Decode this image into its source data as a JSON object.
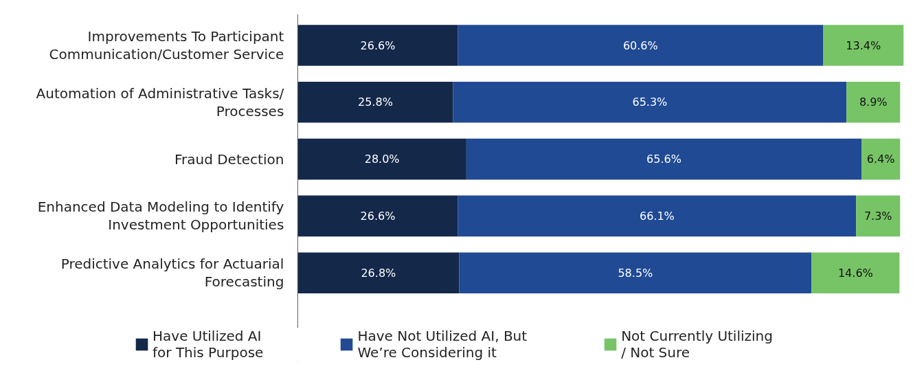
{
  "chart_data": {
    "type": "bar",
    "orientation": "horizontal",
    "stacked": true,
    "grid": false,
    "legend": "bottom",
    "categories": [
      "Improvements To Participant\nCommunication/Customer Service",
      "Automation of Administrative Tasks/\nProcesses",
      "Fraud Detection",
      "Enhanced Data Modeling to Identify\nInvestment Opportunities",
      "Predictive Analytics for Actuarial\nForecasting"
    ],
    "series": [
      {
        "name": "Have Utilized AI\nfor This Purpose",
        "color": "#14284a",
        "values": [
          26.6,
          25.8,
          28.0,
          26.6,
          26.8
        ],
        "value_labels": [
          "26.6%",
          "25.8%",
          "28.0%",
          "26.6%",
          "26.8%"
        ]
      },
      {
        "name": "Have Not Utilized AI, But\nWe’re Considering it",
        "color": "#204a94",
        "values": [
          60.6,
          65.3,
          65.6,
          66.1,
          58.5
        ],
        "value_labels": [
          "60.6%",
          "65.3%",
          "65.6%",
          "66.1%",
          "58.5%"
        ]
      },
      {
        "name": "Not Currently Utilizing\n/ Not Sure",
        "color": "#77c466",
        "values": [
          13.4,
          8.9,
          6.4,
          7.3,
          14.6
        ],
        "value_labels": [
          "13.4%",
          "8.9%",
          "6.4%",
          "7.3%",
          "14.6%"
        ]
      }
    ]
  }
}
